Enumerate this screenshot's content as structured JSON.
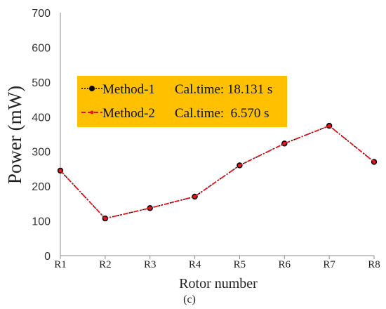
{
  "chart_data": {
    "type": "line",
    "categories": [
      "R1",
      "R2",
      "R3",
      "R4",
      "R5",
      "R6",
      "R7",
      "R8"
    ],
    "series": [
      {
        "name": "Method-1",
        "calc_time": "Cal.time: 18.131 s",
        "color": "#000000",
        "values": [
          245,
          107,
          137,
          170,
          260,
          323,
          374,
          270
        ]
      },
      {
        "name": "Method-2",
        "calc_time": "Cal.time:  6.570 s",
        "color": "#e8141c",
        "values": [
          245,
          107,
          137,
          170,
          260,
          323,
          374,
          270
        ]
      }
    ],
    "xlabel": "Rotor number",
    "ylabel": "Power (mW)",
    "ylim": [
      0,
      700
    ],
    "yticks": [
      0,
      100,
      200,
      300,
      400,
      500,
      600,
      700
    ],
    "grid": false,
    "legend_background": "#ffc000",
    "legend_position": "upper-left"
  },
  "caption": "(c)"
}
